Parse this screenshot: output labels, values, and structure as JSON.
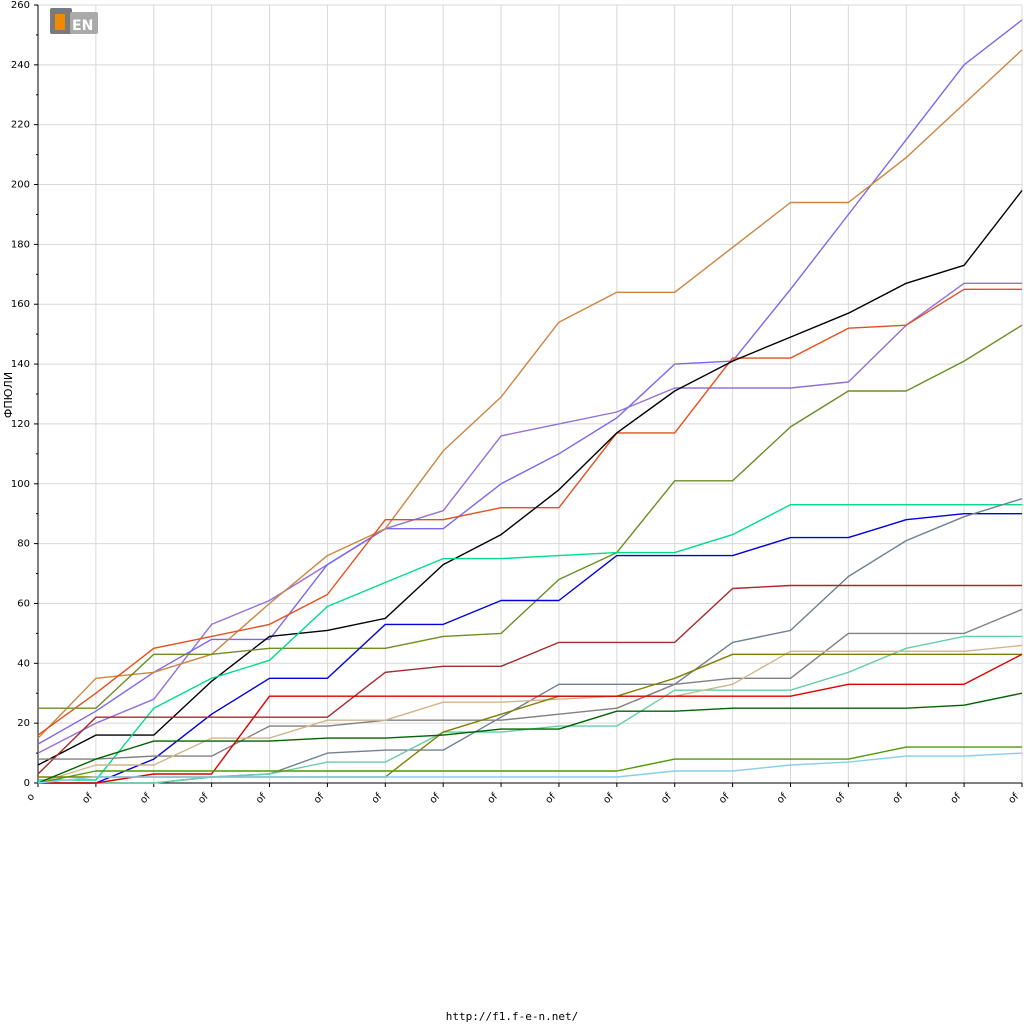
{
  "chart_data": {
    "type": "line",
    "title": "",
    "ylabel": "ФПЮЛИ",
    "xlabel": "",
    "ylim": [
      0,
      260
    ],
    "yticks": [
      0,
      20,
      40,
      60,
      80,
      100,
      120,
      140,
      160,
      180,
      200,
      220,
      240,
      260
    ],
    "x": [
      0,
      1,
      2,
      3,
      4,
      5,
      6,
      7,
      8,
      9,
      10,
      11,
      12,
      13,
      14,
      15,
      16,
      17
    ],
    "xtick_labels": [
      "o",
      "of",
      "of",
      "of",
      "of",
      "of",
      "of",
      "of",
      "of",
      "of",
      "of",
      "of",
      "of",
      "of",
      "of",
      "of",
      "of",
      "of"
    ],
    "grid": true,
    "legend": "none",
    "series": [
      {
        "color": "#9370DB",
        "values": [
          10,
          20,
          28,
          53,
          61,
          73,
          85,
          91,
          116,
          120,
          124,
          132,
          132,
          132,
          134,
          153,
          167,
          167
        ]
      },
      {
        "color": "#7B68EE",
        "values": [
          13,
          24,
          37,
          48,
          48,
          73,
          85,
          85,
          100,
          110,
          122,
          140,
          141,
          165,
          190,
          215,
          240,
          255
        ]
      },
      {
        "color": "#CD853F",
        "values": [
          15,
          35,
          37,
          43,
          60,
          76,
          85,
          111,
          129,
          154,
          164,
          164,
          179,
          194,
          194,
          209,
          227,
          245
        ]
      },
      {
        "color": "#E2501E",
        "values": [
          16,
          30,
          45,
          49,
          53,
          63,
          88,
          88,
          92,
          92,
          117,
          117,
          142,
          142,
          152,
          153,
          165,
          165
        ]
      },
      {
        "color": "#000000",
        "values": [
          6,
          16,
          16,
          34,
          49,
          51,
          55,
          73,
          83,
          98,
          117,
          131,
          141,
          149,
          157,
          167,
          173,
          198
        ]
      },
      {
        "color": "#6B8E23",
        "values": [
          25,
          25,
          43,
          43,
          45,
          45,
          45,
          49,
          50,
          68,
          77,
          101,
          101,
          119,
          131,
          131,
          141,
          153
        ]
      },
      {
        "color": "#00DD88",
        "values": [
          1,
          1,
          25,
          35,
          41,
          59,
          67,
          75,
          75,
          76,
          77,
          77,
          83,
          93,
          93,
          93,
          93,
          93
        ]
      },
      {
        "color": "#0000DD",
        "values": [
          0,
          0,
          8,
          23,
          35,
          35,
          53,
          53,
          61,
          61,
          76,
          76,
          76,
          82,
          82,
          88,
          90,
          90
        ]
      },
      {
        "color": "#708090",
        "values": [
          0,
          0,
          0,
          2,
          3,
          10,
          11,
          11,
          22,
          33,
          33,
          33,
          47,
          51,
          69,
          81,
          89,
          95
        ]
      },
      {
        "color": "#A52A2A",
        "values": [
          3,
          22,
          22,
          22,
          22,
          22,
          37,
          39,
          39,
          47,
          47,
          47,
          65,
          66,
          66,
          66,
          66,
          66
        ]
      },
      {
        "color": "#808080",
        "values": [
          8,
          8,
          9,
          9,
          19,
          19,
          21,
          21,
          21,
          23,
          25,
          33,
          35,
          35,
          50,
          50,
          50,
          58
        ]
      },
      {
        "color": "#66CDAA",
        "values": [
          0,
          0,
          0,
          2,
          3,
          7,
          7,
          17,
          17,
          19,
          19,
          31,
          31,
          31,
          37,
          45,
          49,
          49
        ]
      },
      {
        "color": "#D2B48C",
        "values": [
          0,
          6,
          6,
          15,
          15,
          21,
          21,
          27,
          27,
          28,
          29,
          29,
          33,
          44,
          44,
          44,
          44,
          46
        ]
      },
      {
        "color": "#808000",
        "values": [
          2,
          2,
          2,
          2,
          2,
          2,
          2,
          17,
          23,
          29,
          29,
          35,
          43,
          43,
          43,
          43,
          43,
          43
        ]
      },
      {
        "color": "#DD0000",
        "values": [
          0,
          0,
          3,
          3,
          29,
          29,
          29,
          29,
          29,
          29,
          29,
          29,
          29,
          29,
          33,
          33,
          33,
          43
        ]
      },
      {
        "color": "#006400",
        "values": [
          0,
          8,
          14,
          14,
          14,
          15,
          15,
          16,
          18,
          18,
          24,
          24,
          25,
          25,
          25,
          25,
          26,
          30
        ]
      },
      {
        "color": "#4E9A06",
        "values": [
          0,
          4,
          4,
          4,
          4,
          4,
          4,
          4,
          4,
          4,
          4,
          8,
          8,
          8,
          8,
          12,
          12,
          12
        ]
      },
      {
        "color": "#87CEEB",
        "values": [
          0,
          2,
          2,
          2,
          2,
          2,
          2,
          2,
          2,
          2,
          2,
          4,
          4,
          6,
          7,
          9,
          9,
          10
        ]
      }
    ]
  },
  "logo": {
    "text": "F1EN"
  },
  "footer": {
    "url": "http://f1.f-e-n.net/"
  }
}
